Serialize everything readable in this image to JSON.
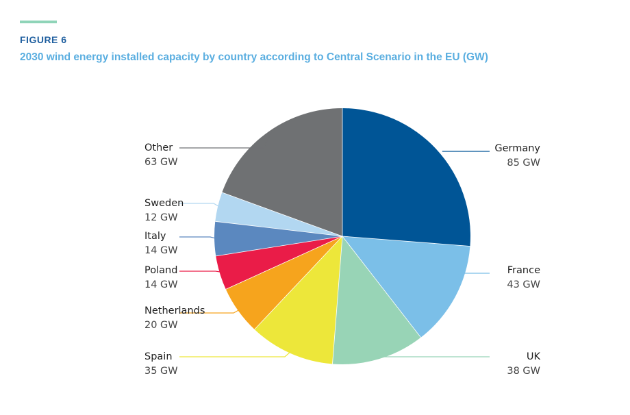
{
  "header": {
    "figure_label": "FIGURE 6",
    "accent_color": "#8fd4b8",
    "label_color": "#1f5f9f",
    "title_color": "#5aaee0"
  },
  "chart_data": {
    "type": "pie",
    "title": "2030 wind energy installed capacity by country according to Central Scenario in the EU (GW)",
    "unit": "GW",
    "slices": [
      {
        "label": "Germany",
        "value": 85,
        "value_label": "85 GW",
        "color": "#005596"
      },
      {
        "label": "France",
        "value": 43,
        "value_label": "43 GW",
        "color": "#7bbfe8"
      },
      {
        "label": "UK",
        "value": 38,
        "value_label": "38 GW",
        "color": "#98d4b6"
      },
      {
        "label": "Spain",
        "value": 35,
        "value_label": "35 GW",
        "color": "#ede73a"
      },
      {
        "label": "Netherlands",
        "value": 20,
        "value_label": "20 GW",
        "color": "#f6a41d"
      },
      {
        "label": "Poland",
        "value": 14,
        "value_label": "14 GW",
        "color": "#ea1c48"
      },
      {
        "label": "Italy",
        "value": 14,
        "value_label": "14 GW",
        "color": "#5b88bf"
      },
      {
        "label": "Sweden",
        "value": 12,
        "value_label": "12 GW",
        "color": "#b2d7f1"
      },
      {
        "label": "Other",
        "value": 63,
        "value_label": "63 GW",
        "color": "#6f7173"
      }
    ]
  }
}
